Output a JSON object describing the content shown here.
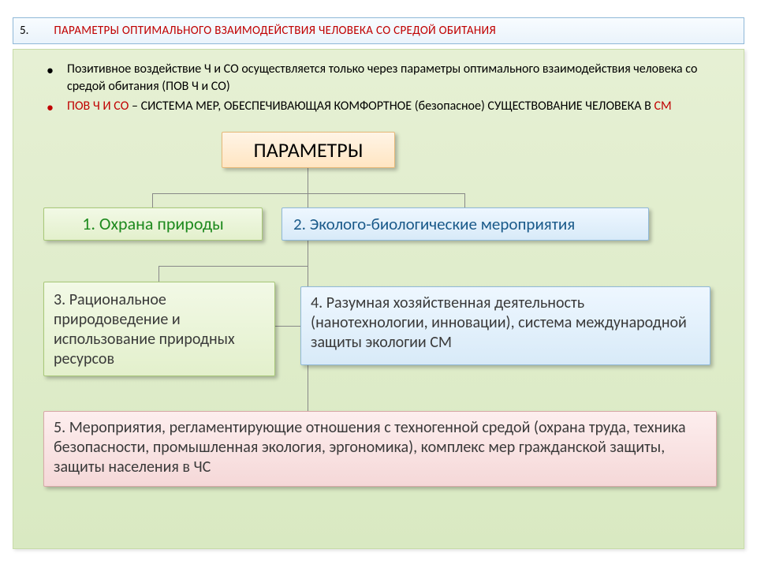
{
  "title": {
    "number": "5.",
    "text": "ПАРАМЕТРЫ ОПТИМАЛЬНОГО ВЗАИМОДЕЙСТВИЯ ЧЕЛОВЕКА СО СРЕДОЙ ОБИТАНИЯ",
    "border_color": "#8fb8d8",
    "text_color": "#c00000",
    "fontsize": 15
  },
  "bullets": [
    {
      "marker_color": "#000000",
      "prefix_red": "",
      "text": "Позитивное  воздействие  Ч и СО осуществляется только через параметры оптимального взаимодействия человека со средой обитания (ПОВ Ч и СО)"
    },
    {
      "marker_color": "#c00000",
      "prefix_red": "ПОВ Ч И СО",
      "mid": " – СИСТЕМА МЕР, ОБЕСПЕЧИВАЮЩАЯ КОМФОРТНОЕ (безопасное) СУЩЕСТВОВАНИЕ ЧЕЛОВЕКА  В ",
      "suffix_red": "СМ"
    }
  ],
  "diagram": {
    "type": "tree",
    "connector_color": "#888888",
    "root": {
      "label": "ПАРАМЕТРЫ",
      "bg_top": "#fff4e6",
      "bg_bottom": "#ffe5c2",
      "border": "#e6b878",
      "text_color": "#000000",
      "fontsize": 26
    },
    "nodes": [
      {
        "id": "n1",
        "label": "1. Охрана природы",
        "bg_top": "#f2f9e6",
        "bg_bottom": "#e3f0cc",
        "border": "#a8c878",
        "text_color": "#1e8a1e",
        "fontsize": 22
      },
      {
        "id": "n2",
        "label": "2. Эколого-биологические мероприятия",
        "bg_top": "#eef7ff",
        "bg_bottom": "#d8eaf8",
        "border": "#8fb8d8",
        "text_color": "#1a5a8a",
        "fontsize": 21
      },
      {
        "id": "n3",
        "label": "3. Рациональное природоведение и использование природных ресурсов",
        "bg_top": "#f2f9e6",
        "bg_bottom": "#e3f0cc",
        "border": "#a8c878",
        "text_color": "#3a3a3a",
        "fontsize": 20
      },
      {
        "id": "n4",
        "label": "4. Разумная хозяйственная деятельность (нанотехнологии, инновации), система международной защиты экологии СМ",
        "bg_top": "#eef7ff",
        "bg_bottom": "#d8eaf8",
        "border": "#8fb8d8",
        "text_color": "#3a3a3a",
        "fontsize": 20
      },
      {
        "id": "n5",
        "label": "5. Мероприятия, регламентирующие отношения с техногенной средой (охрана труда, техника безопасности, промышленная экология, эргономика), комплекс мер гражданской защиты, защиты населения в ЧС",
        "bg_top": "#fdeeee",
        "bg_bottom": "#f5d8d8",
        "border": "#d8a8a8",
        "text_color": "#3a3a3a",
        "fontsize": 20
      }
    ],
    "panel_bg_top": "#e6f0d4",
    "panel_bg_bottom": "#d9e9c2",
    "panel_border": "#c8dca8"
  }
}
